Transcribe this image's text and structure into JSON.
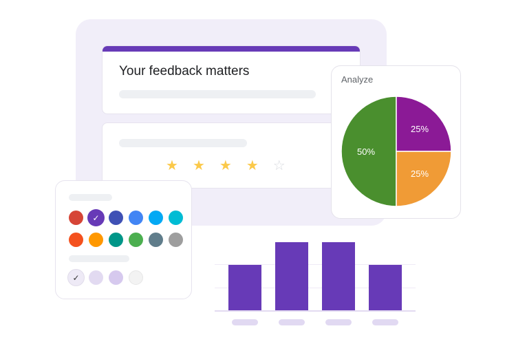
{
  "form": {
    "title": "Your feedback matters",
    "accent_color": "#673ab7",
    "rating": {
      "filled": 4,
      "total": 5,
      "stars": [
        "★",
        "★",
        "★",
        "★",
        "☆"
      ]
    }
  },
  "analyze": {
    "label": "Analyze"
  },
  "chart_data": [
    {
      "type": "pie",
      "title": "Analyze",
      "categories": [
        "Green",
        "Purple",
        "Orange"
      ],
      "values": [
        50,
        25,
        25
      ],
      "labels": [
        "50%",
        "25%",
        "25%"
      ],
      "colors": [
        "#4a8f2e",
        "#8b1a96",
        "#f09b36"
      ]
    },
    {
      "type": "bar",
      "categories": [
        "",
        "",
        "",
        ""
      ],
      "values": [
        2,
        3,
        3,
        2
      ],
      "ylim": [
        0,
        3
      ],
      "grid": true,
      "color": "#673ab7"
    }
  ],
  "palette": {
    "row1": [
      "#d64537",
      "#673ab7",
      "#3f51b5",
      "#4285f4",
      "#03a9f4",
      "#00bcd4"
    ],
    "row2": [
      "#f4511e",
      "#ff9800",
      "#009688",
      "#4caf50",
      "#607d8b",
      "#9e9e9e"
    ],
    "selected_index": 1,
    "check_glyph": "✓",
    "shades": [
      "#eeeaf6",
      "#e2daf1",
      "#d6c9ee",
      "#f3f3f3"
    ],
    "shade_selected_index": 0
  }
}
